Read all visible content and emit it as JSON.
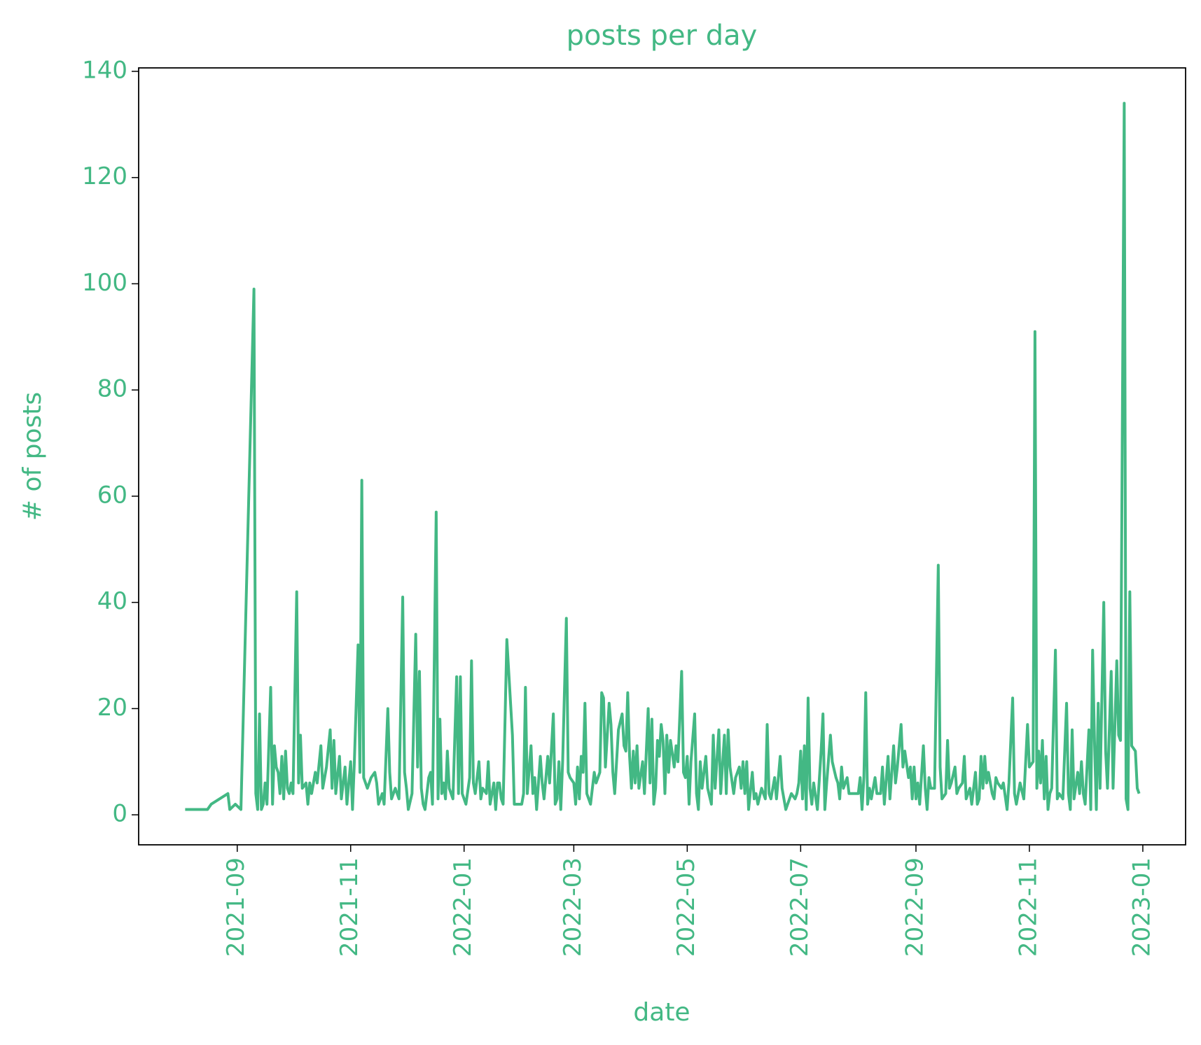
{
  "chart_data": {
    "type": "line",
    "title": "posts per day",
    "x_label": "date",
    "y_label": "# of posts",
    "color": "#43b884",
    "x": [
      "2021-08-04",
      "2021-08-16",
      "2021-08-18",
      "2021-08-27",
      "2021-08-28",
      "2021-08-31",
      "2021-09-03",
      "2021-09-10",
      "2021-09-11",
      "2021-09-12",
      "2021-09-13",
      "2021-09-14",
      "2021-09-15",
      "2021-09-16",
      "2021-09-17",
      "2021-09-19",
      "2021-09-20",
      "2021-09-21",
      "2021-09-22",
      "2021-09-23",
      "2021-09-24",
      "2021-09-25",
      "2021-09-26",
      "2021-09-27",
      "2021-09-28",
      "2021-09-29",
      "2021-09-30",
      "2021-10-01",
      "2021-10-03",
      "2021-10-04",
      "2021-10-05",
      "2021-10-06",
      "2021-10-08",
      "2021-10-09",
      "2021-10-10",
      "2021-10-11",
      "2021-10-13",
      "2021-10-14",
      "2021-10-16",
      "2021-10-17",
      "2021-10-19",
      "2021-10-21",
      "2021-10-22",
      "2021-10-23",
      "2021-10-24",
      "2021-10-26",
      "2021-10-27",
      "2021-10-29",
      "2021-10-30",
      "2021-11-01",
      "2021-11-02",
      "2021-11-03",
      "2021-11-05",
      "2021-11-06",
      "2021-11-07",
      "2021-11-08",
      "2021-11-10",
      "2021-11-12",
      "2021-11-14",
      "2021-11-15",
      "2021-11-16",
      "2021-11-18",
      "2021-11-19",
      "2021-11-21",
      "2021-11-22",
      "2021-11-23",
      "2021-11-25",
      "2021-11-27",
      "2021-11-29",
      "2021-11-30",
      "2021-12-01",
      "2021-12-02",
      "2021-12-04",
      "2021-12-06",
      "2021-12-07",
      "2021-12-08",
      "2021-12-09",
      "2021-12-10",
      "2021-12-11",
      "2021-12-13",
      "2021-12-14",
      "2021-12-15",
      "2021-12-17",
      "2021-12-18",
      "2021-12-19",
      "2021-12-20",
      "2021-12-21",
      "2021-12-22",
      "2021-12-23",
      "2021-12-24",
      "2021-12-26",
      "2021-12-28",
      "2021-12-29",
      "2021-12-30",
      "2021-12-31",
      "2022-01-01",
      "2022-01-02",
      "2022-01-04",
      "2022-01-05",
      "2022-01-06",
      "2022-01-07",
      "2022-01-09",
      "2022-01-10",
      "2022-01-11",
      "2022-01-13",
      "2022-01-14",
      "2022-01-15",
      "2022-01-17",
      "2022-01-18",
      "2022-01-19",
      "2022-01-20",
      "2022-01-21",
      "2022-01-22",
      "2022-01-24",
      "2022-01-27",
      "2022-01-28",
      "2022-01-30",
      "2022-02-01",
      "2022-02-02",
      "2022-02-03",
      "2022-02-04",
      "2022-02-06",
      "2022-02-07",
      "2022-02-08",
      "2022-02-09",
      "2022-02-10",
      "2022-02-11",
      "2022-02-12",
      "2022-02-13",
      "2022-02-15",
      "2022-02-16",
      "2022-02-18",
      "2022-02-19",
      "2022-02-20",
      "2022-02-21",
      "2022-02-22",
      "2022-02-23",
      "2022-02-25",
      "2022-02-26",
      "2022-02-27",
      "2022-03-01",
      "2022-03-02",
      "2022-03-03",
      "2022-03-04",
      "2022-03-05",
      "2022-03-06",
      "2022-03-07",
      "2022-03-08",
      "2022-03-10",
      "2022-03-11",
      "2022-03-12",
      "2022-03-13",
      "2022-03-15",
      "2022-03-16",
      "2022-03-17",
      "2022-03-18",
      "2022-03-20",
      "2022-03-21",
      "2022-03-22",
      "2022-03-23",
      "2022-03-25",
      "2022-03-27",
      "2022-03-28",
      "2022-03-29",
      "2022-03-30",
      "2022-03-31",
      "2022-04-01",
      "2022-04-02",
      "2022-04-03",
      "2022-04-04",
      "2022-04-05",
      "2022-04-07",
      "2022-04-08",
      "2022-04-10",
      "2022-04-11",
      "2022-04-12",
      "2022-04-13",
      "2022-04-14",
      "2022-04-15",
      "2022-04-16",
      "2022-04-17",
      "2022-04-18",
      "2022-04-19",
      "2022-04-20",
      "2022-04-21",
      "2022-04-22",
      "2022-04-24",
      "2022-04-25",
      "2022-04-26",
      "2022-04-28",
      "2022-04-29",
      "2022-04-30",
      "2022-05-01",
      "2022-05-02",
      "2022-05-03",
      "2022-05-05",
      "2022-05-06",
      "2022-05-07",
      "2022-05-08",
      "2022-05-09",
      "2022-05-11",
      "2022-05-12",
      "2022-05-14",
      "2022-05-15",
      "2022-05-16",
      "2022-05-18",
      "2022-05-19",
      "2022-05-21",
      "2022-05-22",
      "2022-05-23",
      "2022-05-24",
      "2022-05-26",
      "2022-05-27",
      "2022-05-29",
      "2022-05-30",
      "2022-05-31",
      "2022-06-01",
      "2022-06-02",
      "2022-06-03",
      "2022-06-05",
      "2022-06-06",
      "2022-06-07",
      "2022-06-08",
      "2022-06-10",
      "2022-06-12",
      "2022-06-13",
      "2022-06-14",
      "2022-06-15",
      "2022-06-17",
      "2022-06-18",
      "2022-06-20",
      "2022-06-21",
      "2022-06-23",
      "2022-06-25",
      "2022-06-26",
      "2022-06-28",
      "2022-06-29",
      "2022-06-30",
      "2022-07-01",
      "2022-07-02",
      "2022-07-03",
      "2022-07-04",
      "2022-07-05",
      "2022-07-06",
      "2022-07-07",
      "2022-07-08",
      "2022-07-10",
      "2022-07-12",
      "2022-07-13",
      "2022-07-14",
      "2022-07-15",
      "2022-07-17",
      "2022-07-18",
      "2022-07-20",
      "2022-07-21",
      "2022-07-22",
      "2022-07-23",
      "2022-07-24",
      "2022-07-26",
      "2022-07-27",
      "2022-07-29",
      "2022-08-01",
      "2022-08-02",
      "2022-08-03",
      "2022-08-04",
      "2022-08-05",
      "2022-08-06",
      "2022-08-07",
      "2022-08-08",
      "2022-08-10",
      "2022-08-11",
      "2022-08-13",
      "2022-08-14",
      "2022-08-15",
      "2022-08-17",
      "2022-08-18",
      "2022-08-20",
      "2022-08-21",
      "2022-08-22",
      "2022-08-24",
      "2022-08-25",
      "2022-08-26",
      "2022-08-28",
      "2022-08-29",
      "2022-08-30",
      "2022-08-31",
      "2022-09-01",
      "2022-09-02",
      "2022-09-03",
      "2022-09-05",
      "2022-09-06",
      "2022-09-07",
      "2022-09-08",
      "2022-09-09",
      "2022-09-11",
      "2022-09-13",
      "2022-09-14",
      "2022-09-15",
      "2022-09-17",
      "2022-09-18",
      "2022-09-19",
      "2022-09-20",
      "2022-09-22",
      "2022-09-23",
      "2022-09-24",
      "2022-09-26",
      "2022-09-27",
      "2022-09-28",
      "2022-09-30",
      "2022-10-01",
      "2022-10-03",
      "2022-10-04",
      "2022-10-05",
      "2022-10-06",
      "2022-10-07",
      "2022-10-08",
      "2022-10-09",
      "2022-10-10",
      "2022-10-12",
      "2022-10-13",
      "2022-10-14",
      "2022-10-15",
      "2022-10-17",
      "2022-10-18",
      "2022-10-20",
      "2022-10-21",
      "2022-10-23",
      "2022-10-24",
      "2022-10-25",
      "2022-10-27",
      "2022-10-29",
      "2022-10-31",
      "2022-11-01",
      "2022-11-03",
      "2022-11-04",
      "2022-11-05",
      "2022-11-06",
      "2022-11-07",
      "2022-11-08",
      "2022-11-09",
      "2022-11-10",
      "2022-11-11",
      "2022-11-12",
      "2022-11-13",
      "2022-11-15",
      "2022-11-16",
      "2022-11-17",
      "2022-11-19",
      "2022-11-21",
      "2022-11-22",
      "2022-11-23",
      "2022-11-24",
      "2022-11-25",
      "2022-11-27",
      "2022-11-28",
      "2022-11-29",
      "2022-11-30",
      "2022-12-01",
      "2022-12-03",
      "2022-12-04",
      "2022-12-05",
      "2022-12-06",
      "2022-12-07",
      "2022-12-08",
      "2022-12-09",
      "2022-12-11",
      "2022-12-12",
      "2022-12-13",
      "2022-12-15",
      "2022-12-16",
      "2022-12-18",
      "2022-12-19",
      "2022-12-20",
      "2022-12-22",
      "2022-12-23",
      "2022-12-24",
      "2022-12-25",
      "2022-12-26",
      "2022-12-28",
      "2022-12-29",
      "2022-12-30"
    ],
    "values": [
      1,
      1,
      2,
      4,
      1,
      2,
      1,
      99,
      4,
      1,
      19,
      1,
      2,
      6,
      2,
      24,
      2,
      13,
      9,
      8,
      4,
      11,
      3,
      12,
      5,
      4,
      6,
      4,
      42,
      6,
      15,
      5,
      6,
      2,
      6,
      4,
      8,
      6,
      13,
      5,
      9,
      16,
      5,
      14,
      4,
      11,
      3,
      9,
      2,
      10,
      1,
      10,
      32,
      8,
      63,
      7,
      5,
      7,
      8,
      6,
      2,
      4,
      2,
      20,
      8,
      3,
      5,
      3,
      41,
      8,
      5,
      1,
      4,
      34,
      9,
      27,
      5,
      2,
      1,
      7,
      8,
      2,
      57,
      3,
      18,
      4,
      6,
      3,
      12,
      5,
      3,
      26,
      4,
      26,
      4,
      3,
      2,
      7,
      29,
      6,
      4,
      10,
      3,
      5,
      4,
      10,
      2,
      6,
      1,
      6,
      6,
      3,
      2,
      33,
      15,
      2,
      2,
      2,
      4,
      24,
      4,
      13,
      4,
      7,
      1,
      6,
      11,
      6,
      3,
      11,
      6,
      19,
      2,
      3,
      10,
      1,
      10,
      37,
      8,
      7,
      6,
      2,
      9,
      3,
      11,
      8,
      21,
      4,
      2,
      5,
      8,
      6,
      8,
      23,
      22,
      9,
      21,
      17,
      8,
      4,
      16,
      19,
      13,
      12,
      23,
      11,
      5,
      12,
      6,
      13,
      5,
      10,
      4,
      20,
      6,
      18,
      2,
      5,
      14,
      11,
      17,
      14,
      4,
      15,
      8,
      14,
      9,
      13,
      10,
      27,
      8,
      7,
      11,
      2,
      10,
      19,
      4,
      1,
      10,
      5,
      11,
      5,
      2,
      15,
      5,
      16,
      4,
      15,
      4,
      16,
      9,
      4,
      7,
      9,
      5,
      10,
      4,
      10,
      1,
      8,
      3,
      4,
      2,
      5,
      3,
      17,
      4,
      3,
      7,
      3,
      11,
      5,
      1,
      3,
      4,
      3,
      4,
      6,
      12,
      3,
      13,
      1,
      22,
      5,
      2,
      6,
      1,
      12,
      19,
      1,
      6,
      15,
      10,
      7,
      6,
      3,
      9,
      5,
      7,
      4,
      4,
      4,
      7,
      1,
      7,
      23,
      2,
      5,
      3,
      7,
      4,
      4,
      9,
      2,
      11,
      3,
      13,
      6,
      9,
      17,
      9,
      12,
      7,
      9,
      3,
      9,
      3,
      6,
      2,
      13,
      5,
      1,
      7,
      5,
      5,
      47,
      9,
      3,
      4,
      14,
      5,
      6,
      9,
      4,
      5,
      6,
      11,
      3,
      5,
      2,
      8,
      2,
      3,
      11,
      5,
      11,
      6,
      8,
      4,
      3,
      7,
      6,
      5,
      6,
      1,
      6,
      22,
      4,
      2,
      6,
      3,
      17,
      9,
      10,
      91,
      5,
      12,
      6,
      14,
      3,
      11,
      1,
      4,
      5,
      31,
      3,
      4,
      3,
      21,
      4,
      1,
      16,
      3,
      8,
      4,
      10,
      4,
      2,
      16,
      1,
      31,
      14,
      1,
      21,
      5,
      40,
      12,
      5,
      27,
      5,
      29,
      15,
      14,
      134,
      3,
      1,
      42,
      13,
      12,
      5,
      4
    ],
    "xlim": [
      "2021-07-10",
      "2023-01-24"
    ],
    "xticks": [
      {
        "value": "2021-09-01",
        "label": "2021-09"
      },
      {
        "value": "2021-11-01",
        "label": "2021-11"
      },
      {
        "value": "2022-01-01",
        "label": "2022-01"
      },
      {
        "value": "2022-03-01",
        "label": "2022-03"
      },
      {
        "value": "2022-05-01",
        "label": "2022-05"
      },
      {
        "value": "2022-07-01",
        "label": "2022-07"
      },
      {
        "value": "2022-09-01",
        "label": "2022-09"
      },
      {
        "value": "2022-11-01",
        "label": "2022-11"
      },
      {
        "value": "2023-01-01",
        "label": "2023-01"
      }
    ],
    "ylim": [
      -5.65,
      140.65
    ],
    "yticks": [
      0,
      20,
      40,
      60,
      80,
      100,
      120,
      140
    ],
    "grid": false
  }
}
